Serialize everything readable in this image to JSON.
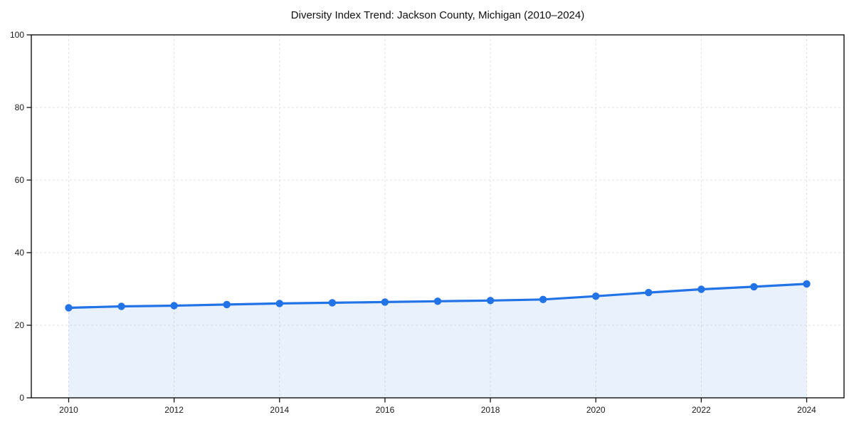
{
  "page": {
    "background_color": "#ffffff"
  },
  "chart_data": {
    "type": "area",
    "title": "Diversity Index Trend: Jackson County, Michigan (2010–2024)",
    "x": [
      2010,
      2011,
      2012,
      2013,
      2014,
      2015,
      2016,
      2017,
      2018,
      2019,
      2020,
      2021,
      2022,
      2023,
      2024
    ],
    "values": [
      24.8,
      25.2,
      25.4,
      25.7,
      26.0,
      26.2,
      26.4,
      26.6,
      26.8,
      27.1,
      28.0,
      29.0,
      29.9,
      30.6,
      31.4
    ],
    "xlabel": "",
    "ylabel": "",
    "xticks": [
      2010,
      2012,
      2014,
      2016,
      2018,
      2020,
      2022,
      2024
    ],
    "yticks": [
      0,
      20,
      40,
      60,
      80,
      100
    ],
    "ylim": [
      0,
      100
    ],
    "grid": true,
    "grid_style": "dashed",
    "legend": false,
    "line_color": "#2273e6",
    "marker_color": "#2273e6",
    "fill_color": "rgba(34, 115, 230, 0.10)",
    "grid_color": "#e2e2e2",
    "spine_color": "#111111",
    "tick_label_color": "#1a1a1a"
  }
}
